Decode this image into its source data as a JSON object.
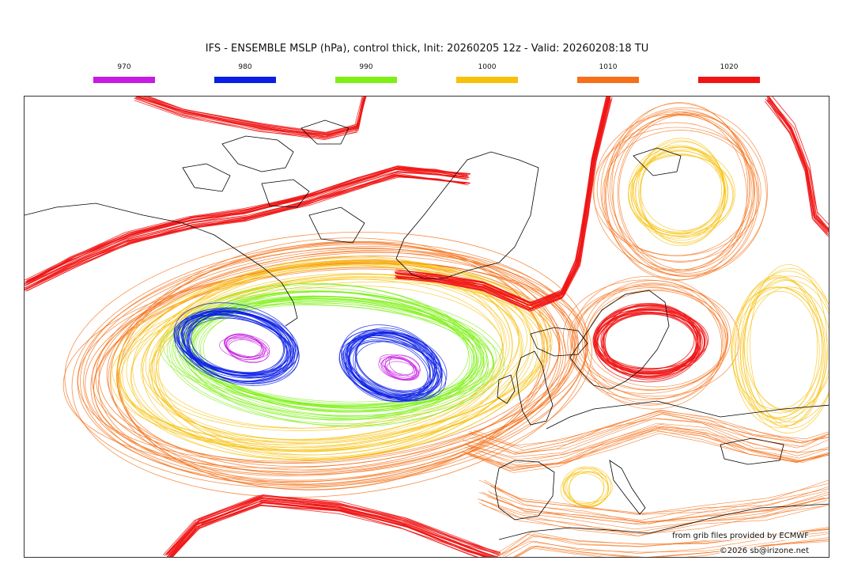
{
  "title": "IFS - ENSEMBLE MSLP (hPa), control thick, Init: 20260205 12z - Valid: 20260208:18 TU",
  "legend": [
    {
      "value": "970",
      "color": "#c61be0"
    },
    {
      "value": "980",
      "color": "#0a1ee6"
    },
    {
      "value": "990",
      "color": "#7ef015"
    },
    {
      "value": "1000",
      "color": "#f8c00a"
    },
    {
      "value": "1010",
      "color": "#f57018"
    },
    {
      "value": "1020",
      "color": "#f01414"
    }
  ],
  "credits": {
    "source": "from grib files provided by ECMWF",
    "copyright": "©2026 sb@irizone.net"
  },
  "map": {
    "features": [
      "north-atlantic-low",
      "west-atlantic-low",
      "greenland",
      "iceland",
      "british-isles",
      "scandinavia",
      "mediterranean"
    ]
  }
}
